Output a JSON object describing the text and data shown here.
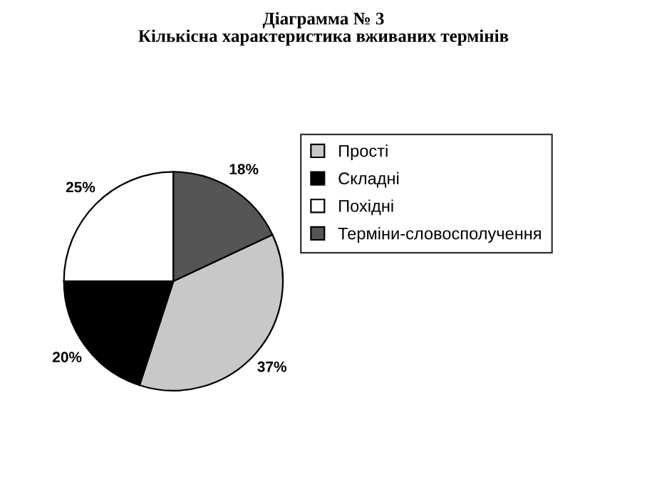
{
  "chart_data": {
    "type": "pie",
    "title": "Діаграмма № 3\nКількісна характеристика вживаних термінів",
    "categories": [
      "Прості",
      "Складні",
      "Похідні",
      "Терміни-словосполучення"
    ],
    "values": [
      37,
      20,
      25,
      18
    ],
    "colors": [
      "#c8c8c8",
      "#000000",
      "#ffffff",
      "#555555"
    ],
    "value_labels": [
      "37%",
      "20%",
      "25%",
      "18%"
    ],
    "legend": "right"
  }
}
